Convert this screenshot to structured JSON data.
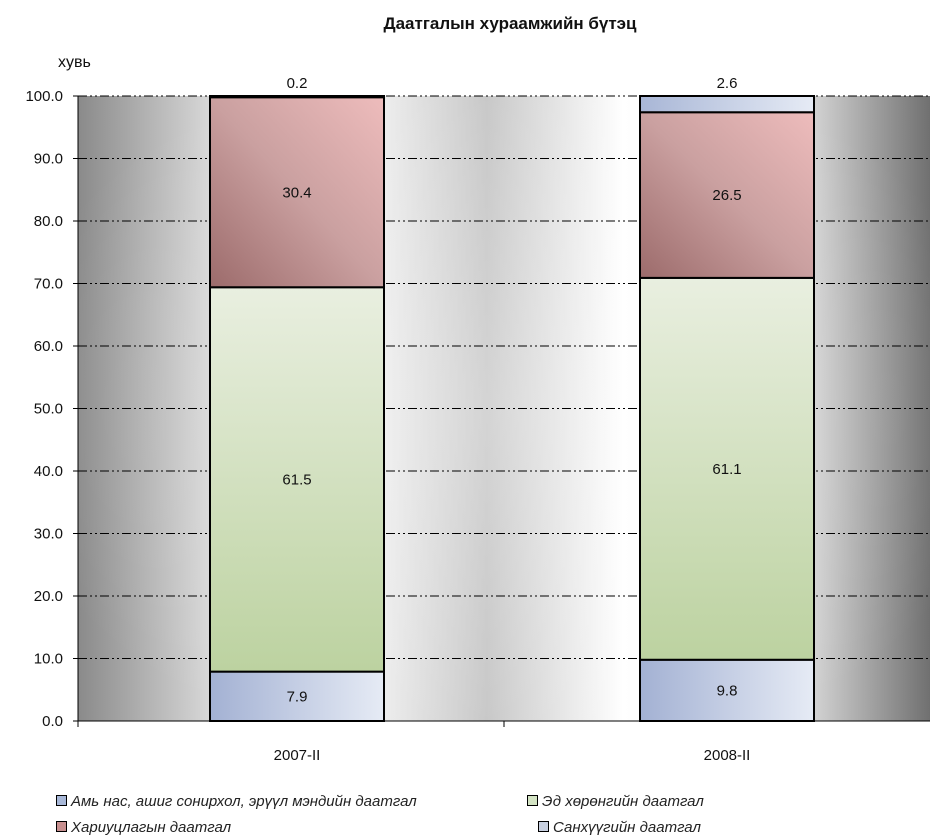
{
  "chart_data": {
    "type": "bar",
    "stacked": true,
    "title": "Даатгалын хураамжийн бүтэц",
    "ylabel": "хувь",
    "xlabel": "",
    "categories": [
      "2007-II",
      "2008-II"
    ],
    "ylim": [
      0,
      100
    ],
    "yticks": [
      "0.0",
      "10.0",
      "20.0",
      "30.0",
      "40.0",
      "50.0",
      "60.0",
      "70.0",
      "80.0",
      "90.0",
      "100.0"
    ],
    "grid": true,
    "legend_position": "bottom",
    "series": [
      {
        "name": "Амь нас, ашиг сонирхол, эрүүл мэндийн даатгал",
        "values": [
          7.9,
          9.8
        ],
        "labels": [
          "7.9",
          "9.8"
        ],
        "color": "#b8c4dc"
      },
      {
        "name": "Эд хөрөнгийн даатгал",
        "values": [
          61.5,
          61.1
        ],
        "labels": [
          "61.5",
          "61.1"
        ],
        "color": "#d2e0c0"
      },
      {
        "name": "Хариуцлагын даатгал",
        "values": [
          30.4,
          26.5
        ],
        "labels": [
          "30.4",
          "26.5"
        ],
        "color": "#d8a8a8"
      },
      {
        "name": "Санхүүгийн даатгал",
        "values": [
          0.2,
          2.6
        ],
        "labels": [
          "0.2",
          "2.6"
        ],
        "color": "#c4d0e4"
      }
    ]
  },
  "legend": {
    "items": [
      {
        "label": "Амь нас, ашиг сонирхол, эрүүл мэндийн даатгал",
        "color": "#a8b8d8"
      },
      {
        "label": "Эд хөрөнгийн даатгал",
        "color": "#d4e4c4"
      },
      {
        "label": "Хариуцлагын даатгал",
        "color": "#c89090"
      },
      {
        "label": "Санхүүгийн даатгал",
        "color": "#c8d0e0"
      }
    ]
  }
}
